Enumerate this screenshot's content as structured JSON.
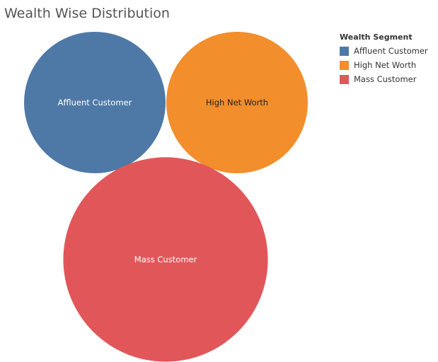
{
  "chart_data": {
    "type": "bubble",
    "title": "Wealth Wise Distribution",
    "legend": {
      "title": "Wealth Segment",
      "placement": "top-right"
    },
    "series": [
      {
        "name": "Affluent Customer",
        "relative_size": 1.0,
        "color": "#4E79A7",
        "label_color": "#ffffff"
      },
      {
        "name": "High Net Worth",
        "relative_size": 1.0,
        "color": "#F28E2B",
        "label_color": "#222222"
      },
      {
        "name": "Mass Customer",
        "relative_size": 2.09,
        "color": "#E15759",
        "label_color": "#ffffff"
      }
    ]
  }
}
